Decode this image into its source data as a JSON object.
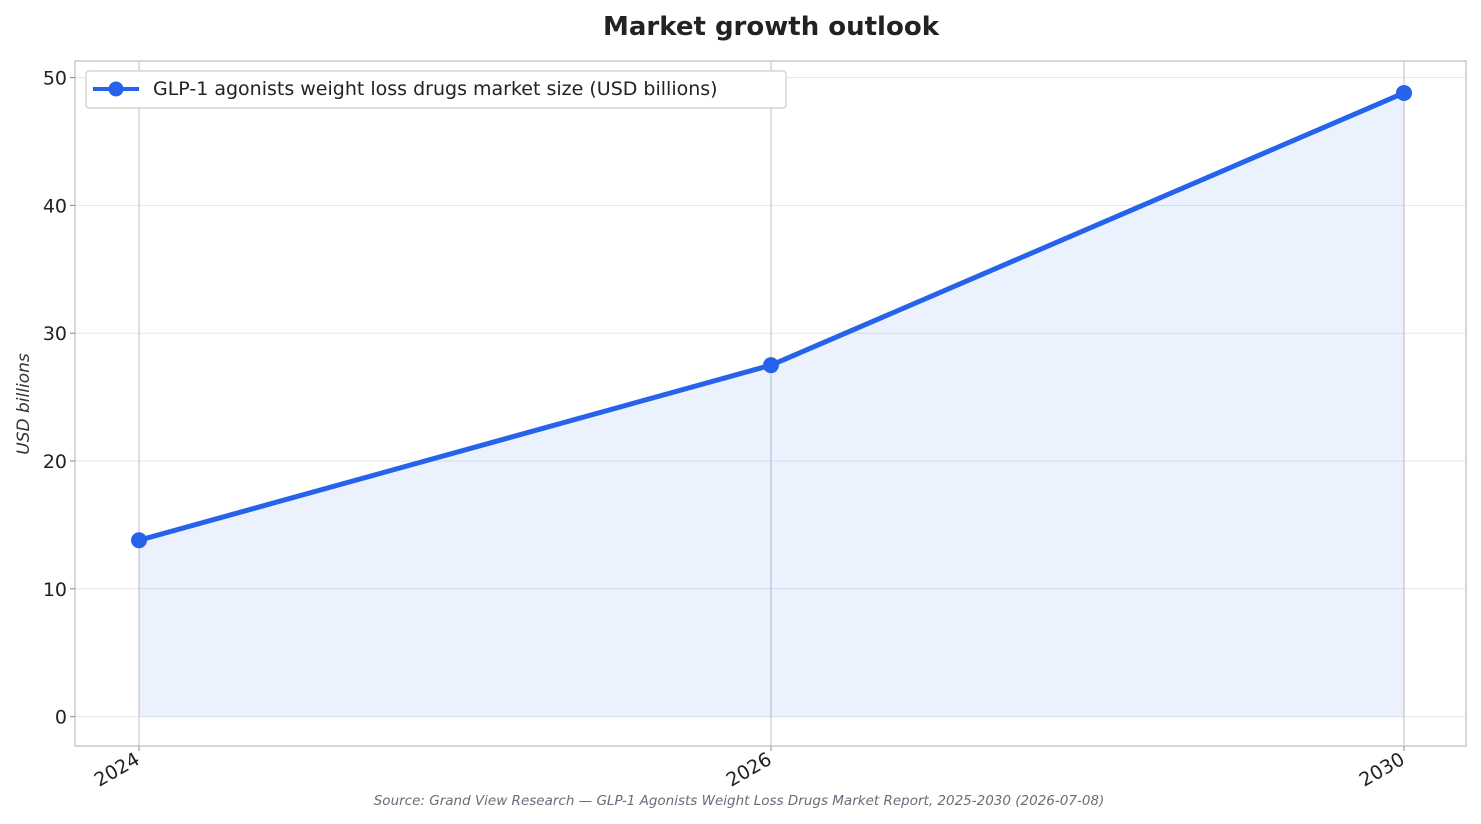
{
  "chart_data": {
    "type": "line",
    "title": "Market growth outlook",
    "xlabel": "",
    "ylabel": "USD billions",
    "x": [
      "2024",
      "2026",
      "2030"
    ],
    "series": [
      {
        "name": "GLP-1 agonists weight loss drugs market size (USD billions)",
        "values": [
          13.8,
          27.5,
          48.8
        ],
        "color": "#2563eb"
      }
    ],
    "ylim": [
      -2.3,
      51.3
    ],
    "yticks": [
      0,
      10,
      20,
      30,
      40,
      50
    ],
    "grid": true,
    "area_fill": true,
    "legend_position": "top-left",
    "source": "Source: Grand View Research — GLP-1 Agonists Weight Loss Drugs Market Report, 2025-2030 (2026-07-08)"
  }
}
